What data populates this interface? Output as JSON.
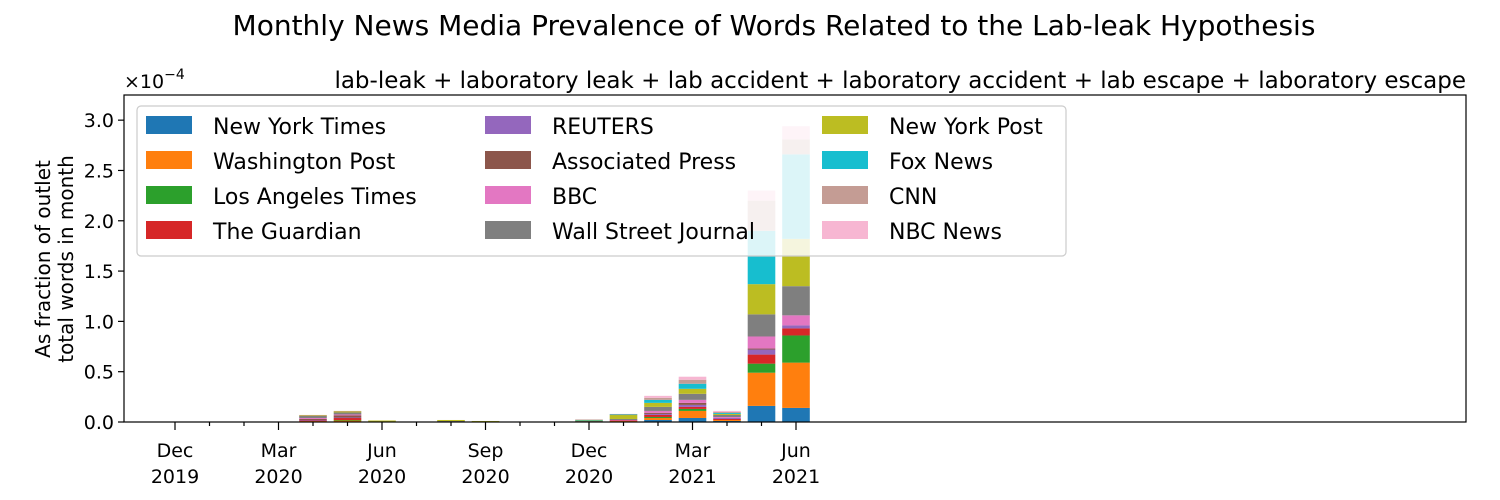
{
  "chart_data": {
    "type": "bar",
    "stacked": true,
    "title": "Monthly News Media Prevalence of Words Related to the Lab-leak Hypothesis",
    "subtitle": "lab-leak + laboratory leak + lab accident + laboratory accident + lab escape + laboratory escape",
    "ylabel_line1": "As fraction of outlet",
    "ylabel_line2": "total words in month",
    "y_scale_label": "×10",
    "y_scale_exponent": "−4",
    "y_scale_factor": 0.0001,
    "ylim": [
      0,
      3.25
    ],
    "ytick_values": [
      0.0,
      0.5,
      1.0,
      1.5,
      2.0,
      2.5,
      3.0
    ],
    "ytick_labels": [
      "0.0",
      "0.5",
      "1.0",
      "1.5",
      "2.0",
      "2.5",
      "3.0"
    ],
    "categories": [
      "Dec 2019",
      "Jan 2020",
      "Feb 2020",
      "Mar 2020",
      "Apr 2020",
      "May 2020",
      "Jun 2020",
      "Jul 2020",
      "Aug 2020",
      "Sep 2020",
      "Oct 2020",
      "Nov 2020",
      "Dec 2020",
      "Jan 2021",
      "Feb 2021",
      "Mar 2021",
      "Apr 2021",
      "May 2021",
      "Jun 2021"
    ],
    "xtick_labels": [
      {
        "index": 0,
        "line1": "Dec",
        "line2": "2019"
      },
      {
        "index": 3,
        "line1": "Mar",
        "line2": "2020"
      },
      {
        "index": 6,
        "line1": "Jun",
        "line2": "2020"
      },
      {
        "index": 9,
        "line1": "Sep",
        "line2": "2020"
      },
      {
        "index": 12,
        "line1": "Dec",
        "line2": "2020"
      },
      {
        "index": 15,
        "line1": "Mar",
        "line2": "2021"
      },
      {
        "index": 18,
        "line1": "Jun",
        "line2": "2021"
      }
    ],
    "legend_position": "top-left",
    "grid": false,
    "series": [
      {
        "name": "New York Times",
        "color": "#1f77b4",
        "values": [
          0,
          0,
          0,
          0,
          0,
          0.005,
          0,
          0,
          0,
          0,
          0,
          0,
          0,
          0,
          0.02,
          0.04,
          0.01,
          0.16,
          0.14
        ]
      },
      {
        "name": "Washington Post",
        "color": "#ff7f0e",
        "values": [
          0,
          0,
          0,
          0,
          0.01,
          0.01,
          0,
          0,
          0,
          0,
          0,
          0,
          0,
          0.01,
          0.02,
          0.07,
          0.01,
          0.33,
          0.45
        ]
      },
      {
        "name": "Los Angeles Times",
        "color": "#2ca02c",
        "values": [
          0,
          0,
          0,
          0,
          0,
          0.005,
          0,
          0,
          0,
          0,
          0,
          0,
          0,
          0,
          0.01,
          0.02,
          0,
          0.09,
          0.27
        ]
      },
      {
        "name": "The Guardian",
        "color": "#d62728",
        "values": [
          0,
          0,
          0,
          0,
          0.005,
          0.02,
          0,
          0,
          0,
          0,
          0,
          0,
          0,
          0.005,
          0.02,
          0.02,
          0.01,
          0.09,
          0.07
        ]
      },
      {
        "name": "REUTERS",
        "color": "#9467bd",
        "values": [
          0,
          0,
          0,
          0,
          0.005,
          0.005,
          0,
          0,
          0,
          0,
          0,
          0,
          0.005,
          0,
          0.01,
          0.02,
          0.01,
          0.05,
          0.03
        ]
      },
      {
        "name": "Associated Press",
        "color": "#8c564b",
        "values": [
          0,
          0,
          0,
          0,
          0.01,
          0.02,
          0,
          0,
          0,
          0,
          0,
          0,
          0,
          0,
          0.01,
          0.02,
          0,
          0.01,
          0
        ]
      },
      {
        "name": "BBC",
        "color": "#e377c2",
        "values": [
          0,
          0,
          0,
          0,
          0.01,
          0.01,
          0,
          0,
          0,
          0,
          0,
          0,
          0,
          0.005,
          0.02,
          0.03,
          0.01,
          0.12,
          0.1
        ]
      },
      {
        "name": "Wall Street Journal",
        "color": "#7f7f7f",
        "values": [
          0,
          0,
          0,
          0,
          0.02,
          0.02,
          0.005,
          0,
          0.01,
          0,
          0,
          0,
          0.005,
          0.01,
          0.04,
          0.06,
          0.02,
          0.22,
          0.29
        ]
      },
      {
        "name": "New York Post",
        "color": "#bcbd22",
        "values": [
          0,
          0,
          0,
          0,
          0.005,
          0.01,
          0.01,
          0.005,
          0.01,
          0.01,
          0,
          0,
          0.005,
          0.04,
          0.04,
          0.05,
          0.01,
          0.3,
          0.47
        ]
      },
      {
        "name": "Fox News",
        "color": "#17becf",
        "values": [
          0,
          0,
          0,
          0,
          0,
          0,
          0,
          0,
          0,
          0,
          0.005,
          0.005,
          0.005,
          0.005,
          0.03,
          0.05,
          0.01,
          0.53,
          0.84
        ]
      },
      {
        "name": "CNN",
        "color": "#c49c94",
        "values": [
          0,
          0,
          0,
          0,
          0.005,
          0.005,
          0,
          0,
          0,
          0,
          0,
          0,
          0.005,
          0.005,
          0.02,
          0.04,
          0.01,
          0.3,
          0.15
        ]
      },
      {
        "name": "NBC News",
        "color": "#f7b6d2",
        "values": [
          0,
          0,
          0,
          0,
          0,
          0,
          0,
          0,
          0,
          0,
          0,
          0,
          0,
          0,
          0.02,
          0.03,
          0.01,
          0.1,
          0.13
        ]
      }
    ]
  }
}
